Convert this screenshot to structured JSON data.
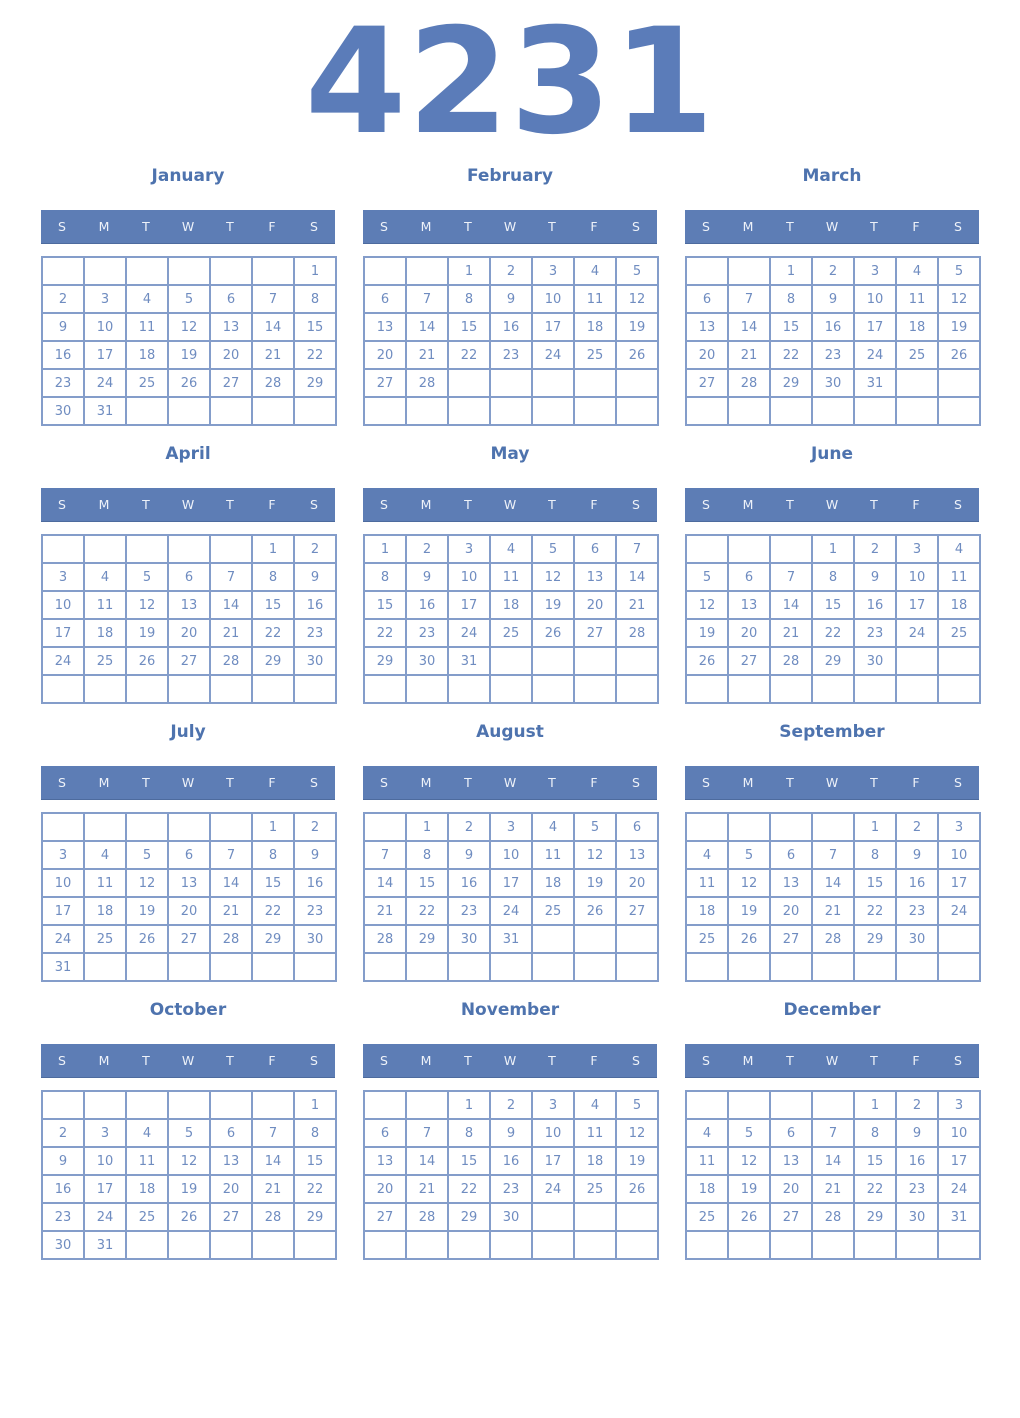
{
  "year": "4231",
  "weekday_headers": [
    "S",
    "M",
    "T",
    "W",
    "T",
    "F",
    "S"
  ],
  "colors": {
    "year_color": "#5b7cb9",
    "title_color": "#4e73ae",
    "header_bg": "#5d7db5",
    "header_text": "#eef2f9",
    "grid_border": "#849dca",
    "day_color": "#6f8cc0",
    "page_bg": "#ffffff"
  },
  "months": [
    {
      "name": "January",
      "weeks": [
        [
          "",
          "",
          "",
          "",
          "",
          "",
          "1"
        ],
        [
          "2",
          "3",
          "4",
          "5",
          "6",
          "7",
          "8"
        ],
        [
          "9",
          "10",
          "11",
          "12",
          "13",
          "14",
          "15"
        ],
        [
          "16",
          "17",
          "18",
          "19",
          "20",
          "21",
          "22"
        ],
        [
          "23",
          "24",
          "25",
          "26",
          "27",
          "28",
          "29"
        ],
        [
          "30",
          "31",
          "",
          "",
          "",
          "",
          ""
        ]
      ]
    },
    {
      "name": "February",
      "weeks": [
        [
          "",
          "",
          "1",
          "2",
          "3",
          "4",
          "5"
        ],
        [
          "6",
          "7",
          "8",
          "9",
          "10",
          "11",
          "12"
        ],
        [
          "13",
          "14",
          "15",
          "16",
          "17",
          "18",
          "19"
        ],
        [
          "20",
          "21",
          "22",
          "23",
          "24",
          "25",
          "26"
        ],
        [
          "27",
          "28",
          "",
          "",
          "",
          "",
          ""
        ],
        [
          "",
          "",
          "",
          "",
          "",
          "",
          ""
        ]
      ]
    },
    {
      "name": "March",
      "weeks": [
        [
          "",
          "",
          "1",
          "2",
          "3",
          "4",
          "5"
        ],
        [
          "6",
          "7",
          "8",
          "9",
          "10",
          "11",
          "12"
        ],
        [
          "13",
          "14",
          "15",
          "16",
          "17",
          "18",
          "19"
        ],
        [
          "20",
          "21",
          "22",
          "23",
          "24",
          "25",
          "26"
        ],
        [
          "27",
          "28",
          "29",
          "30",
          "31",
          "",
          ""
        ],
        [
          "",
          "",
          "",
          "",
          "",
          "",
          ""
        ]
      ]
    },
    {
      "name": "April",
      "weeks": [
        [
          "",
          "",
          "",
          "",
          "",
          "1",
          "2"
        ],
        [
          "3",
          "4",
          "5",
          "6",
          "7",
          "8",
          "9"
        ],
        [
          "10",
          "11",
          "12",
          "13",
          "14",
          "15",
          "16"
        ],
        [
          "17",
          "18",
          "19",
          "20",
          "21",
          "22",
          "23"
        ],
        [
          "24",
          "25",
          "26",
          "27",
          "28",
          "29",
          "30"
        ],
        [
          "",
          "",
          "",
          "",
          "",
          "",
          ""
        ]
      ]
    },
    {
      "name": "May",
      "weeks": [
        [
          "1",
          "2",
          "3",
          "4",
          "5",
          "6",
          "7"
        ],
        [
          "8",
          "9",
          "10",
          "11",
          "12",
          "13",
          "14"
        ],
        [
          "15",
          "16",
          "17",
          "18",
          "19",
          "20",
          "21"
        ],
        [
          "22",
          "23",
          "24",
          "25",
          "26",
          "27",
          "28"
        ],
        [
          "29",
          "30",
          "31",
          "",
          "",
          "",
          ""
        ],
        [
          "",
          "",
          "",
          "",
          "",
          "",
          ""
        ]
      ]
    },
    {
      "name": "June",
      "weeks": [
        [
          "",
          "",
          "",
          "1",
          "2",
          "3",
          "4"
        ],
        [
          "5",
          "6",
          "7",
          "8",
          "9",
          "10",
          "11"
        ],
        [
          "12",
          "13",
          "14",
          "15",
          "16",
          "17",
          "18"
        ],
        [
          "19",
          "20",
          "21",
          "22",
          "23",
          "24",
          "25"
        ],
        [
          "26",
          "27",
          "28",
          "29",
          "30",
          "",
          ""
        ],
        [
          "",
          "",
          "",
          "",
          "",
          "",
          ""
        ]
      ]
    },
    {
      "name": "July",
      "weeks": [
        [
          "",
          "",
          "",
          "",
          "",
          "1",
          "2"
        ],
        [
          "3",
          "4",
          "5",
          "6",
          "7",
          "8",
          "9"
        ],
        [
          "10",
          "11",
          "12",
          "13",
          "14",
          "15",
          "16"
        ],
        [
          "17",
          "18",
          "19",
          "20",
          "21",
          "22",
          "23"
        ],
        [
          "24",
          "25",
          "26",
          "27",
          "28",
          "29",
          "30"
        ],
        [
          "31",
          "",
          "",
          "",
          "",
          "",
          ""
        ]
      ]
    },
    {
      "name": "August",
      "weeks": [
        [
          "",
          "1",
          "2",
          "3",
          "4",
          "5",
          "6"
        ],
        [
          "7",
          "8",
          "9",
          "10",
          "11",
          "12",
          "13"
        ],
        [
          "14",
          "15",
          "16",
          "17",
          "18",
          "19",
          "20"
        ],
        [
          "21",
          "22",
          "23",
          "24",
          "25",
          "26",
          "27"
        ],
        [
          "28",
          "29",
          "30",
          "31",
          "",
          "",
          ""
        ],
        [
          "",
          "",
          "",
          "",
          "",
          "",
          ""
        ]
      ]
    },
    {
      "name": "September",
      "weeks": [
        [
          "",
          "",
          "",
          "",
          "1",
          "2",
          "3"
        ],
        [
          "4",
          "5",
          "6",
          "7",
          "8",
          "9",
          "10"
        ],
        [
          "11",
          "12",
          "13",
          "14",
          "15",
          "16",
          "17"
        ],
        [
          "18",
          "19",
          "20",
          "21",
          "22",
          "23",
          "24"
        ],
        [
          "25",
          "26",
          "27",
          "28",
          "29",
          "30",
          ""
        ],
        [
          "",
          "",
          "",
          "",
          "",
          "",
          ""
        ]
      ]
    },
    {
      "name": "October",
      "weeks": [
        [
          "",
          "",
          "",
          "",
          "",
          "",
          "1"
        ],
        [
          "2",
          "3",
          "4",
          "5",
          "6",
          "7",
          "8"
        ],
        [
          "9",
          "10",
          "11",
          "12",
          "13",
          "14",
          "15"
        ],
        [
          "16",
          "17",
          "18",
          "19",
          "20",
          "21",
          "22"
        ],
        [
          "23",
          "24",
          "25",
          "26",
          "27",
          "28",
          "29"
        ],
        [
          "30",
          "31",
          "",
          "",
          "",
          "",
          ""
        ]
      ]
    },
    {
      "name": "November",
      "weeks": [
        [
          "",
          "",
          "1",
          "2",
          "3",
          "4",
          "5"
        ],
        [
          "6",
          "7",
          "8",
          "9",
          "10",
          "11",
          "12"
        ],
        [
          "13",
          "14",
          "15",
          "16",
          "17",
          "18",
          "19"
        ],
        [
          "20",
          "21",
          "22",
          "23",
          "24",
          "25",
          "26"
        ],
        [
          "27",
          "28",
          "29",
          "30",
          "",
          "",
          ""
        ],
        [
          "",
          "",
          "",
          "",
          "",
          "",
          ""
        ]
      ]
    },
    {
      "name": "December",
      "weeks": [
        [
          "",
          "",
          "",
          "",
          "1",
          "2",
          "3"
        ],
        [
          "4",
          "5",
          "6",
          "7",
          "8",
          "9",
          "10"
        ],
        [
          "11",
          "12",
          "13",
          "14",
          "15",
          "16",
          "17"
        ],
        [
          "18",
          "19",
          "20",
          "21",
          "22",
          "23",
          "24"
        ],
        [
          "25",
          "26",
          "27",
          "28",
          "29",
          "30",
          "31"
        ],
        [
          "",
          "",
          "",
          "",
          "",
          "",
          ""
        ]
      ]
    }
  ]
}
